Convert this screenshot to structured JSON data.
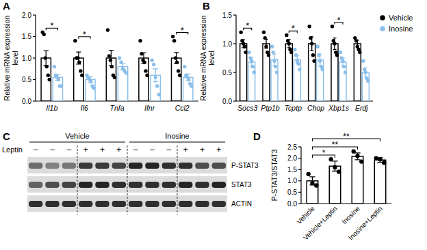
{
  "chart_data": [
    {
      "type": "bar",
      "panel": "A",
      "y_label": "Relative mRNA expression level",
      "categories": [
        "Il1b",
        "Il6",
        "Tnfa",
        "Ifnr",
        "Ccl2"
      ],
      "series": [
        {
          "name": "Vehicle",
          "color": "#000000",
          "values": [
            1.0,
            1.0,
            1.0,
            1.0,
            1.0
          ],
          "errors": [
            0.17,
            0.14,
            0.18,
            0.12,
            0.13
          ],
          "points": [
            [
              1.6,
              1.55,
              1.0,
              0.8,
              0.6,
              0.5
            ],
            [
              1.4,
              1.0,
              1.0,
              0.9,
              0.7,
              0.6
            ],
            [
              1.65,
              1.05,
              0.95,
              0.8,
              0.6,
              0.55
            ],
            [
              1.4,
              1.1,
              0.95,
              0.9,
              0.7,
              0.6
            ],
            [
              1.5,
              1.4,
              1.0,
              0.9,
              0.7,
              0.6
            ]
          ]
        },
        {
          "name": "Inosine",
          "color": "#8bbfea",
          "values": [
            0.55,
            0.5,
            0.8,
            0.6,
            0.55
          ],
          "errors": [
            0.07,
            0.07,
            0.07,
            0.15,
            0.08
          ],
          "points": [
            [
              0.8,
              0.6,
              0.55,
              0.5,
              0.35,
              0.35
            ],
            [
              0.6,
              0.55,
              0.5,
              0.45,
              0.35,
              0.3
            ],
            [
              1.0,
              0.9,
              0.75,
              0.7,
              0.65
            ],
            [
              0.95,
              0.85,
              0.55,
              0.35,
              0.15
            ],
            [
              0.8,
              0.6,
              0.55,
              0.5,
              0.4,
              0.35
            ]
          ]
        }
      ],
      "significance": [
        "*",
        "*",
        null,
        null,
        "*"
      ],
      "ylim": [
        0,
        2
      ],
      "yticks": [
        {
          "value": 0,
          "label": "0.0"
        },
        0.5,
        {
          "value": 1,
          "label": "1.0"
        },
        1.5,
        {
          "value": 2,
          "label": "2.0"
        }
      ]
    },
    {
      "type": "bar",
      "panel": "B",
      "y_label": "Relative mRNA expression level",
      "categories": [
        "Socs3",
        "Ptp1b",
        "Tcptp",
        "Chop",
        "Xbp1s",
        "Erdj"
      ],
      "series": [
        {
          "name": "Vehicle",
          "color": "#000000",
          "values": [
            1.0,
            1.0,
            1.0,
            1.0,
            1.0,
            1.0
          ],
          "errors": [
            0.07,
            0.08,
            0.07,
            0.12,
            0.1,
            0.06
          ],
          "points": [
            [
              1.2,
              1.05,
              1.0,
              0.95,
              0.85
            ],
            [
              1.2,
              1.1,
              0.95,
              0.85,
              0.8
            ],
            [
              1.15,
              1.05,
              1.0,
              0.9,
              0.85
            ],
            [
              1.3,
              1.1,
              1.0,
              0.8,
              0.7
            ],
            [
              1.3,
              1.05,
              1.0,
              0.85,
              0.8
            ],
            [
              1.1,
              1.05,
              0.95,
              0.9,
              0.85
            ]
          ]
        },
        {
          "name": "Inosine",
          "color": "#8bbfea",
          "values": [
            0.68,
            0.72,
            0.72,
            0.72,
            0.68,
            0.5
          ],
          "errors": [
            0.08,
            0.1,
            0.07,
            0.1,
            0.07,
            0.08
          ],
          "points": [
            [
              0.85,
              0.75,
              0.7,
              0.6,
              0.5
            ],
            [
              0.95,
              0.85,
              0.7,
              0.6,
              0.5
            ],
            [
              0.9,
              0.8,
              0.7,
              0.65,
              0.55
            ],
            [
              0.95,
              0.8,
              0.7,
              0.6,
              0.55
            ],
            [
              0.85,
              0.75,
              0.7,
              0.6,
              0.5
            ],
            [
              0.7,
              0.55,
              0.5,
              0.4,
              0.35
            ]
          ]
        }
      ],
      "significance": [
        "*",
        null,
        "*",
        null,
        "*",
        null
      ],
      "legend": "upper right",
      "ylim": [
        0,
        1.5
      ],
      "yticks": [
        {
          "value": 0,
          "label": "0.0"
        },
        0.5,
        {
          "value": 1,
          "label": "1.0"
        },
        1.5
      ]
    },
    {
      "type": "bar",
      "panel": "D",
      "y_label": "P-STAT3/STAT3",
      "categories": [
        "Vehicle",
        "Vehicle+Leptin",
        "Inosine",
        "Inosine+Leptin"
      ],
      "values": [
        1.0,
        1.65,
        2.08,
        1.92
      ],
      "errors": [
        0.18,
        0.22,
        0.15,
        0.1
      ],
      "points": [
        [
          1.3,
          0.9,
          0.8
        ],
        [
          1.95,
          1.6,
          1.4
        ],
        [
          2.3,
          2.1,
          1.85
        ],
        [
          2.0,
          1.95,
          1.8
        ]
      ],
      "color": "#000000",
      "comparisons": [
        {
          "a": "Vehicle",
          "b": "Vehicle+Leptin",
          "label": "*"
        },
        {
          "a": "Vehicle",
          "b": "Inosine",
          "label": "**"
        },
        {
          "a": "Vehicle",
          "b": "Inosine+Leptin",
          "label": "**"
        }
      ],
      "ylim": [
        0,
        2.5
      ],
      "yticks": [
        {
          "value": 0,
          "label": "0.0"
        },
        0.5,
        {
          "value": 1,
          "label": "1.0"
        },
        1.5,
        {
          "value": 2,
          "label": "2.0"
        },
        2.5
      ]
    }
  ],
  "blot": {
    "panel": "C",
    "groups": [
      "Vehicle",
      "Inosine"
    ],
    "treatment_label": "Leptin",
    "lanes": [
      "–",
      "–",
      "–",
      "+",
      "+",
      "+",
      "–",
      "–",
      "–",
      "+",
      "+",
      "+"
    ],
    "rows": [
      {
        "label": "P-STAT3",
        "band_intensity": [
          0.55,
          0.45,
          0.5,
          0.8,
          0.8,
          0.75,
          0.9,
          0.9,
          0.85,
          0.85,
          0.7,
          0.7
        ]
      },
      {
        "label": "STAT3",
        "band_intensity": [
          0.6,
          0.7,
          0.75,
          0.9,
          0.9,
          0.85,
          0.85,
          0.85,
          0.85,
          0.9,
          0.85,
          0.9
        ]
      },
      {
        "label": "ACTIN",
        "band_intensity": [
          0.85,
          0.85,
          0.85,
          0.85,
          0.85,
          0.85,
          0.85,
          0.85,
          0.85,
          0.85,
          0.85,
          0.85
        ]
      }
    ]
  }
}
